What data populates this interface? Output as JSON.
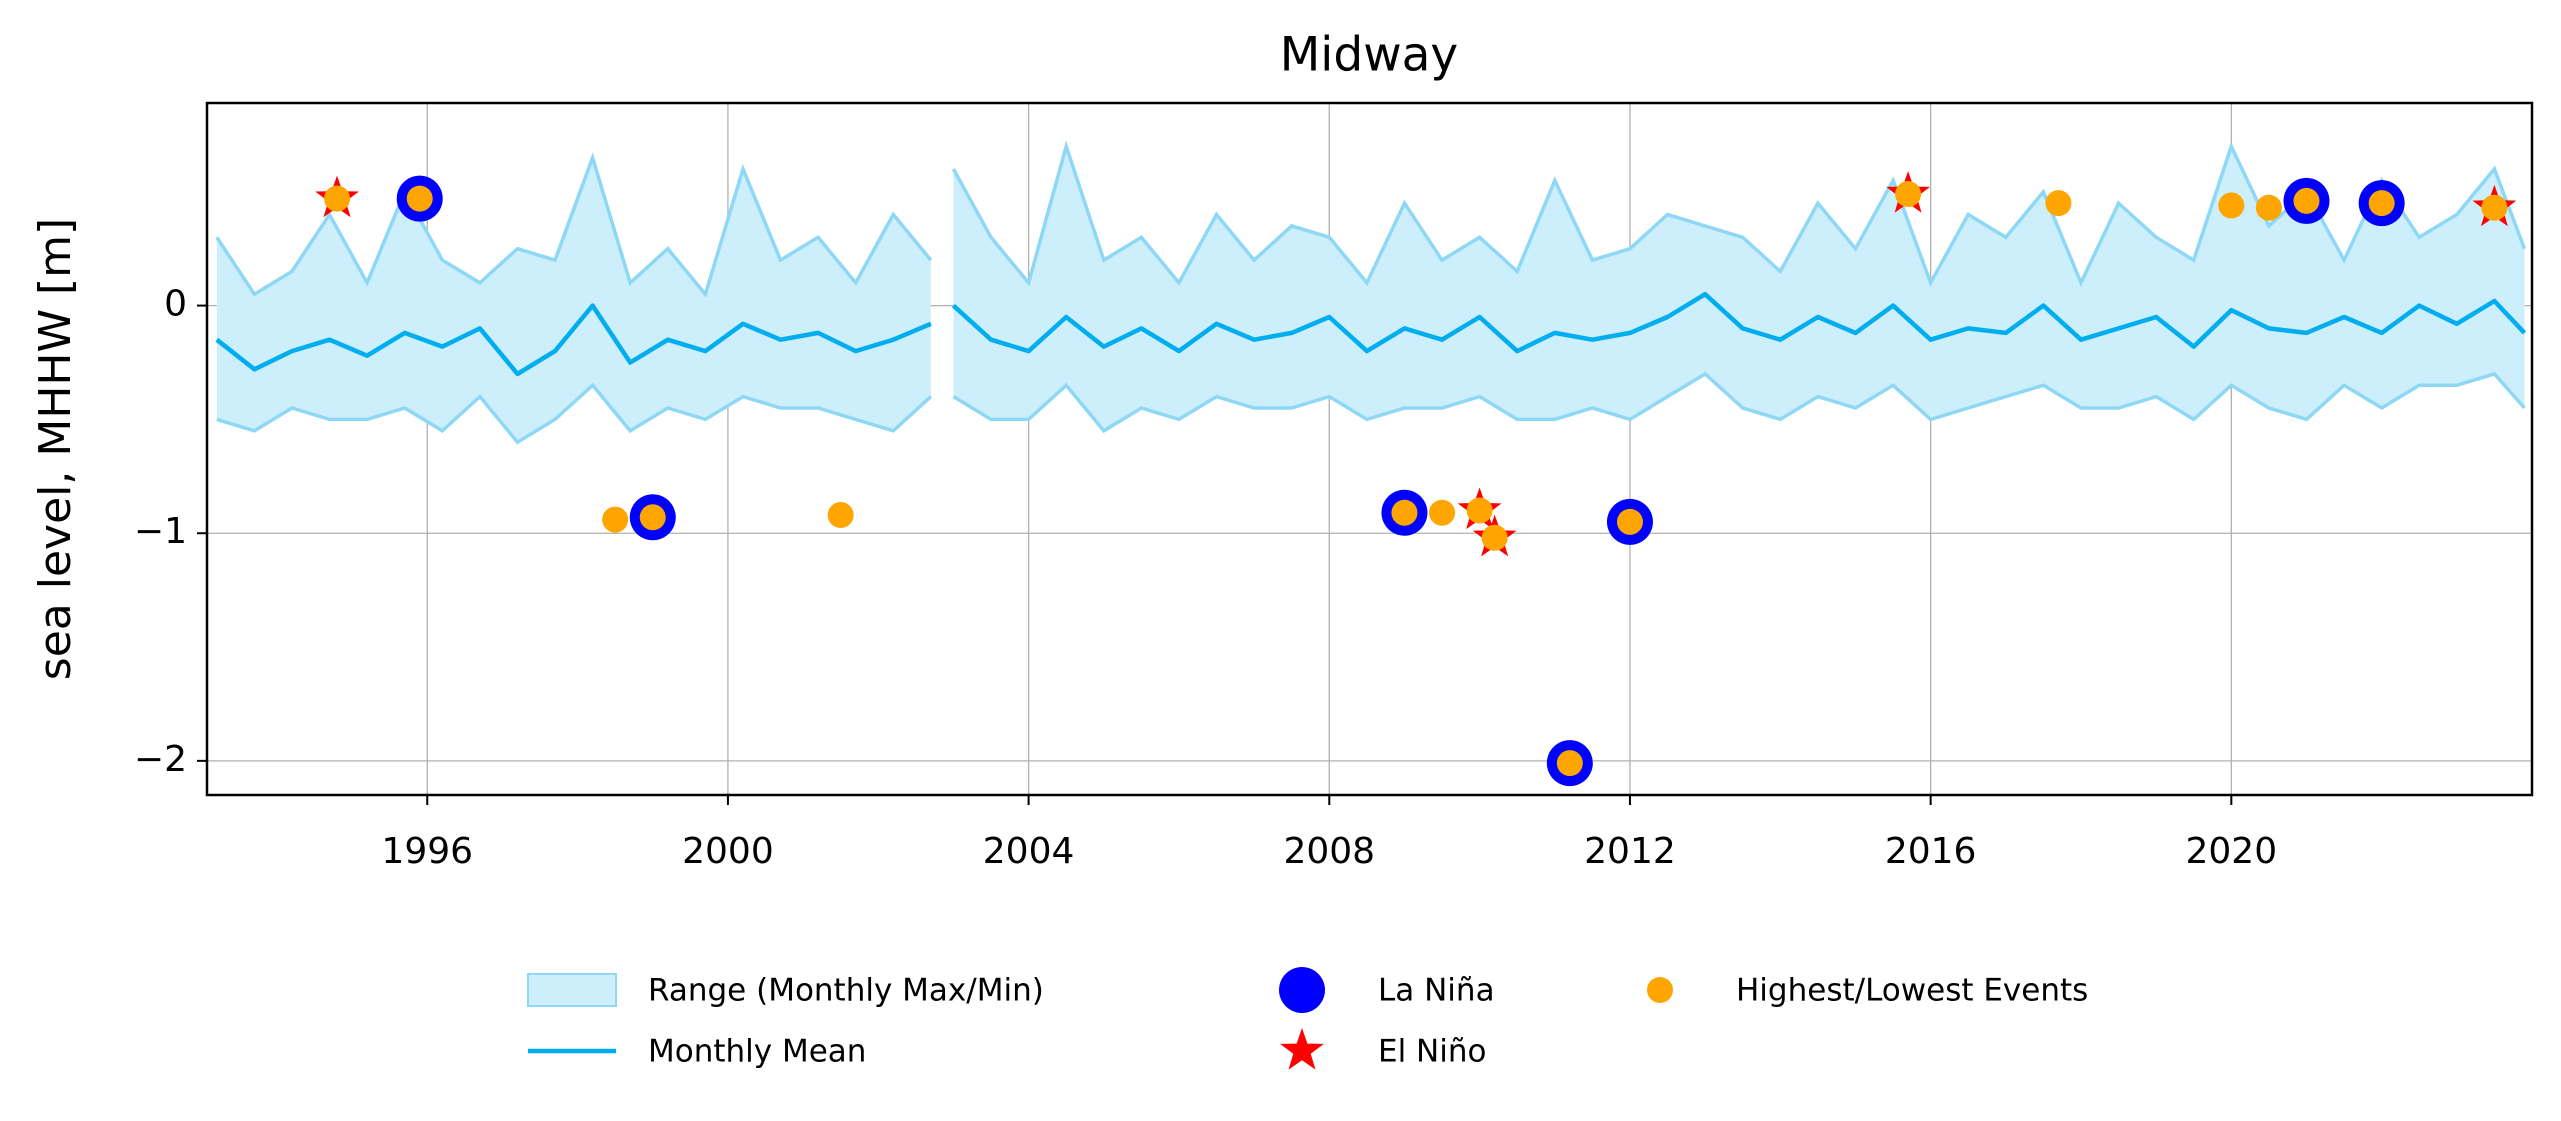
{
  "chart_data": {
    "type": "line",
    "title": "Midway",
    "y_label": "sea level, MHHW [m]",
    "xlim": [
      1993.07,
      2024.0
    ],
    "ylim": [
      -2.15,
      0.89
    ],
    "xticks": [
      1996,
      2000,
      2004,
      2008,
      2012,
      2016,
      2020
    ],
    "yticks": [
      {
        "value": -2,
        "label": "−2"
      },
      {
        "value": -1,
        "label": "−1"
      },
      0
    ],
    "grid": true,
    "x": [
      1993.2,
      1993.7,
      1994.2,
      1994.7,
      1995.2,
      1995.7,
      1996.2,
      1996.7,
      1997.2,
      1997.7,
      1998.2,
      1998.7,
      1999.2,
      1999.7,
      2000.2,
      2000.7,
      2001.2,
      2001.7,
      2002.2,
      2002.7,
      2002.85,
      2003.0,
      2003.5,
      2004.0,
      2004.5,
      2005.0,
      2005.5,
      2006.0,
      2006.5,
      2007.0,
      2007.5,
      2008.0,
      2008.5,
      2009.0,
      2009.5,
      2010.0,
      2010.5,
      2011.0,
      2011.5,
      2012.0,
      2012.5,
      2013.0,
      2013.5,
      2014.0,
      2014.5,
      2015.0,
      2015.5,
      2016.0,
      2016.5,
      2017.0,
      2017.5,
      2018.0,
      2018.5,
      2019.0,
      2019.5,
      2020.0,
      2020.5,
      2021.0,
      2021.5,
      2022.0,
      2022.5,
      2023.0,
      2023.5,
      2023.9
    ],
    "band": {
      "name": "Range (Monthly Max/Min)",
      "color": "#cdeefb",
      "edge_color": "#8ed8f5",
      "upper": [
        0.3,
        0.05,
        0.15,
        0.4,
        0.1,
        0.5,
        0.2,
        0.1,
        0.25,
        0.2,
        0.65,
        0.1,
        0.25,
        0.05,
        0.6,
        0.2,
        0.3,
        0.1,
        0.4,
        0.2,
        null,
        0.6,
        0.3,
        0.1,
        0.7,
        0.2,
        0.3,
        0.1,
        0.4,
        0.2,
        0.35,
        0.3,
        0.1,
        0.45,
        0.2,
        0.3,
        0.15,
        0.55,
        0.2,
        0.25,
        0.4,
        0.35,
        0.3,
        0.15,
        0.45,
        0.25,
        0.55,
        0.1,
        0.4,
        0.3,
        0.5,
        0.1,
        0.45,
        0.3,
        0.2,
        0.7,
        0.35,
        0.5,
        0.2,
        0.55,
        0.3,
        0.4,
        0.6,
        0.25
      ],
      "lower": [
        -0.5,
        -0.55,
        -0.45,
        -0.5,
        -0.5,
        -0.45,
        -0.55,
        -0.4,
        -0.6,
        -0.5,
        -0.35,
        -0.55,
        -0.45,
        -0.5,
        -0.4,
        -0.45,
        -0.45,
        -0.5,
        -0.55,
        -0.4,
        null,
        -0.4,
        -0.5,
        -0.5,
        -0.35,
        -0.55,
        -0.45,
        -0.5,
        -0.4,
        -0.45,
        -0.45,
        -0.4,
        -0.5,
        -0.45,
        -0.45,
        -0.4,
        -0.5,
        -0.5,
        -0.45,
        -0.5,
        -0.4,
        -0.3,
        -0.45,
        -0.5,
        -0.4,
        -0.45,
        -0.35,
        -0.5,
        -0.45,
        -0.4,
        -0.35,
        -0.45,
        -0.45,
        -0.4,
        -0.5,
        -0.35,
        -0.45,
        -0.5,
        -0.35,
        -0.45,
        -0.35,
        -0.35,
        -0.3,
        -0.45
      ]
    },
    "series": [
      {
        "name": "Monthly Mean",
        "color": "#00aeef",
        "values": [
          -0.15,
          -0.28,
          -0.2,
          -0.15,
          -0.22,
          -0.12,
          -0.18,
          -0.1,
          -0.3,
          -0.2,
          0.0,
          -0.25,
          -0.15,
          -0.2,
          -0.08,
          -0.15,
          -0.12,
          -0.2,
          -0.15,
          -0.08,
          null,
          0.0,
          -0.15,
          -0.2,
          -0.05,
          -0.18,
          -0.1,
          -0.2,
          -0.08,
          -0.15,
          -0.12,
          -0.05,
          -0.2,
          -0.1,
          -0.15,
          -0.05,
          -0.2,
          -0.12,
          -0.15,
          -0.12,
          -0.05,
          0.05,
          -0.1,
          -0.15,
          -0.05,
          -0.12,
          0.0,
          -0.15,
          -0.1,
          -0.12,
          0.0,
          -0.15,
          -0.1,
          -0.05,
          -0.18,
          -0.02,
          -0.1,
          -0.12,
          -0.05,
          -0.12,
          0.0,
          -0.08,
          0.02,
          -0.12
        ]
      }
    ],
    "events": [
      {
        "name": "La Niña",
        "color": "#0000ff",
        "marker": "ring",
        "x": [
          1995.9,
          1999.0,
          2009.0,
          2011.2,
          2012.0,
          2021.0,
          2022.0
        ],
        "y": [
          0.47,
          -0.93,
          -0.91,
          -2.01,
          -0.95,
          0.46,
          0.45
        ]
      },
      {
        "name": "El Niño",
        "color": "#ff0000",
        "marker": "star",
        "x": [
          1994.8,
          2010.0,
          2010.2,
          2015.7,
          2023.5
        ],
        "y": [
          0.47,
          -0.9,
          -1.02,
          0.49,
          0.43
        ]
      },
      {
        "name": "Highest/Lowest Events",
        "color": "#ffa500",
        "marker": "dot",
        "x": [
          1994.8,
          1995.9,
          1998.5,
          1999.0,
          2001.5,
          2009.0,
          2009.5,
          2010.0,
          2010.2,
          2011.2,
          2012.0,
          2015.7,
          2017.7,
          2020.0,
          2020.5,
          2021.0,
          2022.0,
          2023.5
        ],
        "y": [
          0.47,
          0.47,
          -0.94,
          -0.93,
          -0.92,
          -0.91,
          -0.91,
          -0.9,
          -1.02,
          -2.01,
          -0.95,
          0.49,
          0.45,
          0.44,
          0.43,
          0.46,
          0.45,
          0.43
        ]
      }
    ]
  }
}
